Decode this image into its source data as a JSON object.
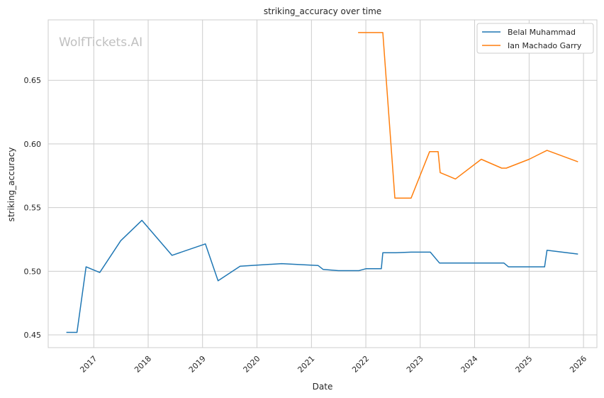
{
  "watermark": "WolfTickets.AI",
  "chart_data": {
    "type": "line",
    "title": "striking_accuracy over time",
    "xlabel": "Date",
    "ylabel": "striking_accuracy",
    "xlim": [
      "2016-03-01",
      "2026-04-01"
    ],
    "ylim": [
      0.44,
      0.6975
    ],
    "x_ticks": [
      "2017",
      "2018",
      "2019",
      "2020",
      "2021",
      "2022",
      "2023",
      "2024",
      "2025",
      "2026"
    ],
    "y_ticks": [
      "0.45",
      "0.50",
      "0.55",
      "0.60",
      "0.65"
    ],
    "grid": true,
    "legend_position": "top-right",
    "series": [
      {
        "name": "Belal Muhammad",
        "color": "#1f77b4",
        "points": [
          [
            "2016-07-01",
            0.452
          ],
          [
            "2016-09-10",
            0.452
          ],
          [
            "2016-11-10",
            0.5035
          ],
          [
            "2017-02-10",
            0.499
          ],
          [
            "2017-07-01",
            0.524
          ],
          [
            "2017-11-20",
            0.54
          ],
          [
            "2018-06-10",
            0.5125
          ],
          [
            "2019-01-20",
            0.5215
          ],
          [
            "2019-04-15",
            0.4925
          ],
          [
            "2019-09-10",
            0.504
          ],
          [
            "2020-06-15",
            0.506
          ],
          [
            "2021-02-15",
            0.5045
          ],
          [
            "2021-03-20",
            0.5015
          ],
          [
            "2021-07-01",
            0.5005
          ],
          [
            "2021-11-15",
            0.5005
          ],
          [
            "2022-01-01",
            0.502
          ],
          [
            "2022-04-15",
            0.502
          ],
          [
            "2022-04-25",
            0.5145
          ],
          [
            "2022-07-20",
            0.5145
          ],
          [
            "2022-11-01",
            0.515
          ],
          [
            "2023-03-10",
            0.515
          ],
          [
            "2023-05-10",
            0.5065
          ],
          [
            "2024-07-15",
            0.5065
          ],
          [
            "2024-08-15",
            0.5035
          ],
          [
            "2025-04-15",
            0.5035
          ],
          [
            "2025-05-01",
            0.5165
          ],
          [
            "2025-11-25",
            0.5135
          ]
        ]
      },
      {
        "name": "Ian Machado Garry",
        "color": "#ff7f0e",
        "points": [
          [
            "2021-11-10",
            0.6875
          ],
          [
            "2022-04-25",
            0.6875
          ],
          [
            "2022-07-15",
            0.5575
          ],
          [
            "2022-11-01",
            0.5575
          ],
          [
            "2023-03-05",
            0.594
          ],
          [
            "2023-05-01",
            0.594
          ],
          [
            "2023-05-15",
            0.5775
          ],
          [
            "2023-08-25",
            0.5725
          ],
          [
            "2024-02-15",
            0.588
          ],
          [
            "2024-07-01",
            0.581
          ],
          [
            "2024-08-01",
            0.581
          ],
          [
            "2025-01-01",
            0.588
          ],
          [
            "2025-05-01",
            0.595
          ],
          [
            "2025-11-25",
            0.586
          ]
        ]
      }
    ]
  }
}
